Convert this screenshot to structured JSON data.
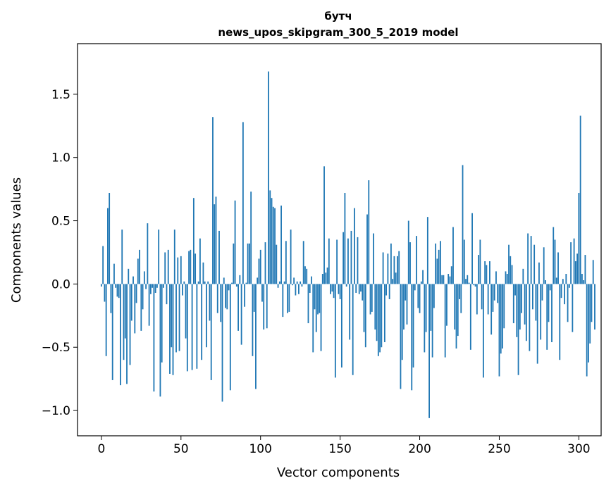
{
  "chart_data": {
    "type": "bar",
    "title": "бутч",
    "subtitle": "news_upos_skipgram_300_5_2019 model",
    "xlabel": "Vector components",
    "ylabel": "Components values",
    "xlim": [
      -15,
      314
    ],
    "ylim": [
      -1.2,
      1.9
    ],
    "x_ticks": [
      0,
      50,
      100,
      150,
      200,
      250,
      300
    ],
    "x_tick_labels": [
      "0",
      "50",
      "100",
      "150",
      "200",
      "250",
      "300"
    ],
    "y_ticks": [
      -1.0,
      -0.5,
      0.0,
      0.5,
      1.0,
      1.5
    ],
    "y_tick_labels": [
      "−1.0",
      "−0.5",
      "0.0",
      "0.5",
      "1.0",
      "1.5"
    ],
    "grid": false,
    "bar_color": "#1f77b4",
    "values": [
      -0.02,
      0.3,
      -0.14,
      -0.57,
      0.6,
      0.72,
      -0.23,
      -0.76,
      0.16,
      -0.03,
      -0.1,
      -0.11,
      -0.8,
      0.43,
      -0.6,
      -0.43,
      -0.79,
      0.12,
      -0.64,
      -0.29,
      0.06,
      -0.39,
      -0.15,
      0.2,
      0.27,
      -0.37,
      -0.2,
      0.1,
      -0.04,
      0.48,
      -0.33,
      -0.08,
      -0.03,
      -0.85,
      -0.07,
      -0.03,
      0.43,
      -0.89,
      -0.62,
      -0.03,
      0.25,
      -0.16,
      0.27,
      -0.71,
      -0.5,
      -0.72,
      0.43,
      -0.54,
      0.21,
      -0.53,
      0.22,
      -0.09,
      0.02,
      -0.43,
      -0.69,
      0.26,
      0.27,
      -0.68,
      0.68,
      0.24,
      -0.67,
      0.02,
      0.36,
      -0.6,
      0.17,
      0.02,
      -0.5,
      0.02,
      -0.29,
      -0.76,
      1.32,
      0.63,
      0.69,
      -0.23,
      0.42,
      -0.3,
      -0.93,
      0.05,
      -0.19,
      -0.2,
      -0.05,
      -0.84,
      0.01,
      0.32,
      0.66,
      -0.02,
      -0.37,
      0.07,
      -0.48,
      1.28,
      -0.18,
      0.01,
      0.32,
      0.32,
      0.73,
      -0.57,
      -0.22,
      -0.83,
      0.05,
      0.2,
      0.27,
      -0.14,
      -0.36,
      0.33,
      -0.35,
      1.68,
      0.74,
      0.68,
      0.61,
      0.6,
      0.31,
      -0.03,
      0.02,
      0.62,
      -0.26,
      0.02,
      0.34,
      -0.23,
      -0.22,
      0.43,
      -0.01,
      0.05,
      -0.09,
      0.02,
      -0.08,
      0.02,
      -0.02,
      0.34,
      0.14,
      0.12,
      -0.31,
      -0.07,
      0.06,
      -0.54,
      -0.2,
      -0.38,
      -0.24,
      -0.23,
      -0.53,
      0.08,
      0.93,
      0.09,
      0.13,
      0.36,
      -0.08,
      -0.06,
      -0.11,
      -0.74,
      0.35,
      -0.08,
      -0.12,
      -0.66,
      0.41,
      0.72,
      -0.02,
      0.36,
      -0.44,
      0.42,
      -0.72,
      0.6,
      -0.07,
      0.37,
      -0.08,
      -0.06,
      -0.13,
      -0.38,
      -0.5,
      0.55,
      0.82,
      -0.24,
      -0.22,
      0.4,
      -0.36,
      -0.45,
      -0.57,
      -0.54,
      -0.5,
      0.25,
      -0.46,
      -0.09,
      0.24,
      -0.12,
      0.32,
      0.04,
      0.22,
      0.09,
      0.22,
      0.26,
      -0.83,
      -0.6,
      -0.36,
      -0.13,
      -0.32,
      0.5,
      0.33,
      -0.84,
      -0.66,
      -0.05,
      0.38,
      -0.19,
      -0.23,
      0.02,
      0.11,
      -0.54,
      -0.38,
      0.53,
      -1.06,
      -0.37,
      -0.58,
      -0.19,
      0.32,
      0.2,
      0.27,
      0.34,
      0.07,
      0.07,
      -0.58,
      -0.33,
      0.08,
      0.06,
      0.14,
      0.45,
      -0.36,
      -0.51,
      -0.41,
      -0.12,
      -0.23,
      0.94,
      0.35,
      0.04,
      0.07,
      0.01,
      -0.52,
      0.56,
      -0.01,
      -0.02,
      -0.24,
      0.23,
      0.35,
      -0.2,
      -0.74,
      0.18,
      0.15,
      -0.24,
      0.18,
      -0.4,
      -0.22,
      -0.13,
      0.1,
      -0.15,
      -0.73,
      -0.55,
      -0.51,
      -0.35,
      0.1,
      0.08,
      0.31,
      0.22,
      0.15,
      -0.31,
      -0.09,
      -0.42,
      -0.72,
      -0.36,
      -0.23,
      0.12,
      -0.32,
      -0.45,
      0.4,
      -0.53,
      0.38,
      -0.2,
      0.31,
      -0.29,
      -0.63,
      0.17,
      -0.44,
      -0.13,
      0.29,
      0.03,
      -0.52,
      -0.3,
      -0.05,
      -0.46,
      0.45,
      0.35,
      0.05,
      0.25,
      -0.6,
      -0.11,
      0.04,
      -0.16,
      0.08,
      -0.3,
      -0.03,
      0.33,
      -0.38,
      0.36,
      0.18,
      0.24,
      0.72,
      1.33,
      0.08,
      0.03,
      0.23,
      -0.73,
      -0.62,
      -0.47,
      -0.3,
      0.19,
      -0.36
    ]
  }
}
